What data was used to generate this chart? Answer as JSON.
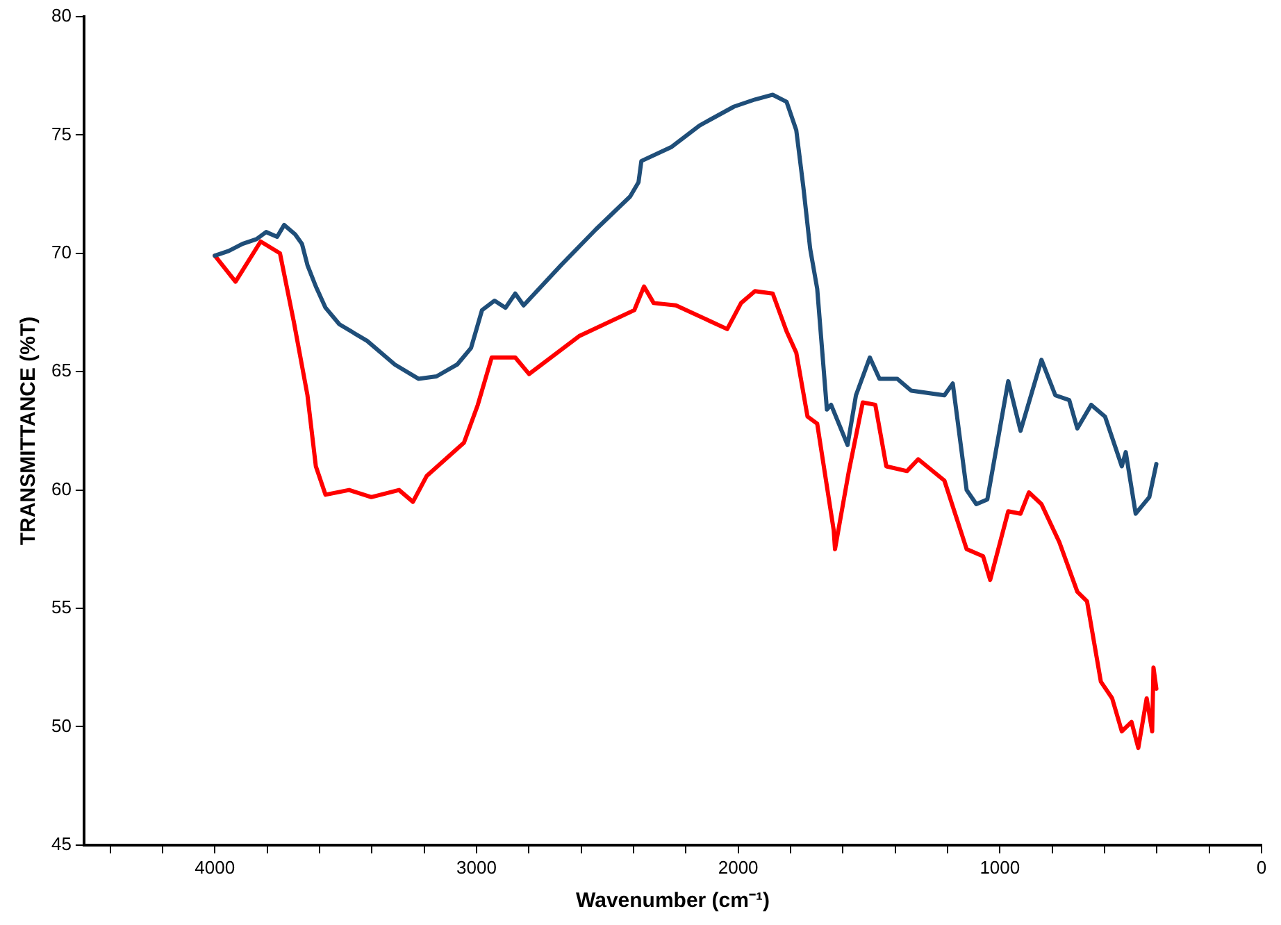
{
  "chart_data": {
    "type": "line",
    "xlabel": "Wavenumber (cm⁻¹)",
    "ylabel": "TRANSMITTANCE (%T)",
    "xlim": [
      4500,
      0
    ],
    "ylim": [
      45,
      80
    ],
    "xticks": [
      {
        "value": 4400,
        "label": null
      },
      {
        "value": 4200,
        "label": null
      },
      4000,
      {
        "value": 3800,
        "label": null
      },
      {
        "value": 3600,
        "label": null
      },
      {
        "value": 3400,
        "label": null
      },
      {
        "value": 3200,
        "label": null
      },
      3000,
      {
        "value": 2800,
        "label": null
      },
      {
        "value": 2600,
        "label": null
      },
      {
        "value": 2400,
        "label": null
      },
      {
        "value": 2200,
        "label": null
      },
      2000,
      {
        "value": 1800,
        "label": null
      },
      {
        "value": 1600,
        "label": null
      },
      {
        "value": 1400,
        "label": null
      },
      {
        "value": 1200,
        "label": null
      },
      1000,
      {
        "value": 800,
        "label": null
      },
      {
        "value": 600,
        "label": null
      },
      {
        "value": 400,
        "label": null
      },
      {
        "value": 200,
        "label": null
      },
      0
    ],
    "yticks": [
      45,
      50,
      55,
      60,
      65,
      70,
      75,
      80
    ],
    "grid": false,
    "legend": false,
    "marker": "none",
    "line_style": "solid",
    "series": [
      {
        "color": "#1f4e79",
        "x": [
          4000,
          3947,
          3894,
          3841,
          3804,
          3762,
          3735,
          3693,
          3667,
          3646,
          3614,
          3577,
          3524,
          3418,
          3312,
          3222,
          3153,
          3074,
          3021,
          2979,
          2931,
          2889,
          2852,
          2820,
          2677,
          2545,
          2413,
          2381,
          2370,
          2254,
          2148,
          2016,
          1936,
          1868,
          1815,
          1778,
          1751,
          1725,
          1698,
          1661,
          1645,
          1582,
          1550,
          1497,
          1460,
          1392,
          1339,
          1212,
          1180,
          1127,
          1090,
          1048,
          968,
          921,
          841,
          788,
          735,
          704,
          651,
          598,
          534,
          519,
          481,
          429,
          402
        ],
        "values": [
          69.9,
          70.1,
          70.4,
          70.6,
          70.9,
          70.7,
          71.2,
          70.8,
          70.4,
          69.5,
          68.6,
          67.7,
          67.0,
          66.3,
          65.3,
          64.7,
          64.8,
          65.3,
          66.0,
          67.6,
          68.0,
          67.7,
          68.3,
          67.8,
          69.5,
          71.0,
          72.4,
          73.0,
          73.9,
          74.5,
          75.4,
          76.2,
          76.5,
          76.7,
          76.4,
          75.2,
          72.8,
          70.2,
          68.5,
          63.4,
          63.6,
          61.9,
          64.0,
          65.6,
          64.7,
          64.7,
          64.2,
          64.0,
          64.5,
          60.0,
          59.4,
          59.6,
          64.6,
          62.5,
          65.5,
          64.0,
          63.8,
          62.6,
          63.6,
          63.1,
          61.0,
          61.6,
          59.0,
          59.7,
          61.1
        ]
      },
      {
        "color": "#ff0000",
        "x": [
          4000,
          3921,
          3825,
          3751,
          3698,
          3646,
          3614,
          3577,
          3487,
          3402,
          3296,
          3243,
          3190,
          3048,
          2995,
          2942,
          2852,
          2799,
          2608,
          2397,
          2360,
          2323,
          2238,
          2042,
          1989,
          1936,
          1868,
          1815,
          1778,
          1735,
          1698,
          1635,
          1630,
          1577,
          1524,
          1476,
          1434,
          1355,
          1312,
          1212,
          1127,
          1064,
          1037,
          968,
          921,
          889,
          841,
          773,
          704,
          667,
          614,
          571,
          534,
          497,
          471,
          439,
          418,
          413,
          402
        ],
        "values": [
          69.9,
          68.8,
          70.5,
          70.0,
          67.1,
          64.0,
          61.0,
          59.8,
          60.0,
          59.7,
          60.0,
          59.5,
          60.6,
          62.0,
          63.6,
          65.6,
          65.6,
          64.9,
          66.5,
          67.6,
          68.6,
          67.9,
          67.8,
          66.8,
          67.9,
          68.4,
          68.3,
          66.7,
          65.8,
          63.1,
          62.8,
          58.3,
          57.5,
          60.8,
          63.7,
          63.6,
          61.0,
          60.8,
          61.3,
          60.4,
          57.5,
          57.2,
          56.2,
          59.1,
          59.0,
          59.9,
          59.4,
          57.8,
          55.7,
          55.3,
          51.9,
          51.2,
          49.8,
          50.2,
          49.1,
          51.2,
          49.8,
          52.5,
          51.6
        ]
      }
    ]
  }
}
